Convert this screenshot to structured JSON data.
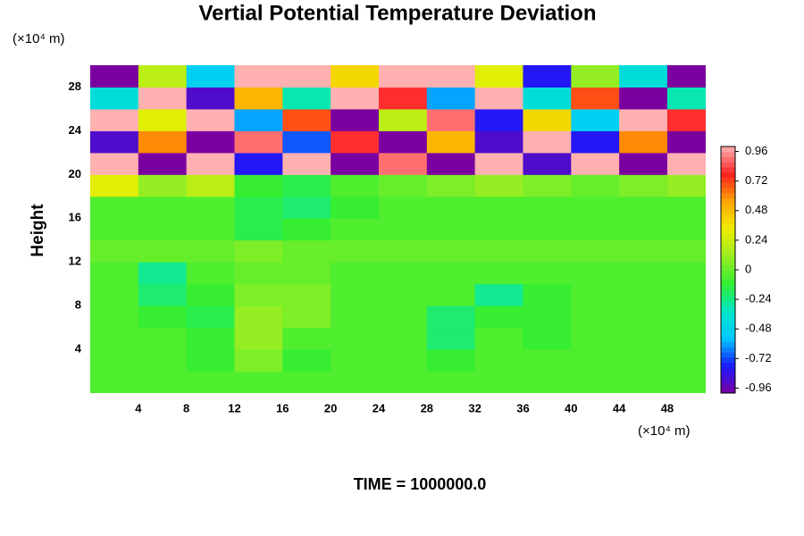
{
  "chart_data": {
    "type": "heatmap",
    "title": "Vertial Potential Temperature Deviation",
    "ylabel": "Height",
    "yunit": "(×10⁴ m)",
    "xunit": "(×10⁴ m)",
    "footer": "TIME = 1000000.0",
    "x": [
      2,
      6,
      10,
      14,
      18,
      22,
      26,
      30,
      34,
      38,
      42,
      46,
      50
    ],
    "y": [
      1,
      3,
      5,
      7,
      9,
      11,
      13,
      15,
      17,
      19,
      21,
      23,
      25,
      27,
      29
    ],
    "z": [
      [
        -0.05,
        -0.05,
        -0.05,
        -0.05,
        -0.05,
        -0.05,
        -0.05,
        -0.05,
        -0.05,
        -0.05,
        -0.05,
        -0.05,
        -0.05
      ],
      [
        -0.05,
        -0.05,
        -0.1,
        0.05,
        -0.1,
        -0.05,
        -0.05,
        -0.1,
        -0.05,
        -0.05,
        -0.05,
        -0.05,
        -0.05
      ],
      [
        -0.05,
        -0.05,
        -0.1,
        0.1,
        -0.05,
        -0.05,
        -0.05,
        -0.2,
        -0.05,
        -0.1,
        -0.05,
        -0.05,
        -0.05
      ],
      [
        -0.05,
        -0.1,
        -0.15,
        0.1,
        0.05,
        -0.05,
        -0.05,
        -0.2,
        -0.1,
        -0.1,
        -0.05,
        -0.05,
        -0.05
      ],
      [
        -0.05,
        -0.2,
        -0.1,
        0.05,
        0.05,
        -0.05,
        -0.05,
        -0.05,
        -0.25,
        -0.1,
        -0.05,
        -0.05,
        -0.05
      ],
      [
        -0.05,
        -0.25,
        -0.05,
        0,
        0,
        -0.05,
        -0.05,
        -0.05,
        -0.05,
        -0.05,
        -0.05,
        -0.05,
        -0.05
      ],
      [
        0,
        0,
        0,
        0.05,
        0,
        0,
        0,
        0,
        0,
        0,
        0,
        0,
        0
      ],
      [
        -0.05,
        -0.05,
        -0.05,
        -0.15,
        -0.1,
        -0.05,
        -0.05,
        -0.05,
        -0.05,
        -0.05,
        -0.05,
        -0.05,
        -0.05
      ],
      [
        -0.05,
        -0.05,
        -0.05,
        -0.15,
        -0.2,
        -0.1,
        -0.05,
        -0.05,
        -0.05,
        -0.05,
        -0.05,
        -0.05,
        -0.05
      ],
      [
        0.3,
        0.1,
        0.2,
        -0.1,
        -0.15,
        -0.05,
        0,
        0.05,
        0.1,
        0.05,
        0,
        0.05,
        0.1
      ],
      [
        1,
        -1,
        1,
        -0.8,
        1,
        -1,
        0.9,
        -1,
        1,
        -0.9,
        1,
        -1,
        1
      ],
      [
        -0.9,
        0.6,
        -1,
        0.9,
        -0.7,
        0.8,
        -1,
        0.5,
        -0.9,
        1,
        -0.8,
        0.6,
        -1
      ],
      [
        1,
        0.3,
        1,
        -0.6,
        0.7,
        -1,
        0.2,
        0.9,
        -0.8,
        0.4,
        -0.5,
        1,
        0.8
      ],
      [
        -0.4,
        1,
        -0.9,
        0.5,
        -0.3,
        1,
        0.8,
        -0.6,
        1,
        -0.4,
        0.7,
        -1,
        -0.3
      ],
      [
        -1,
        0.2,
        -0.5,
        1,
        1,
        0.4,
        1,
        1,
        0.3,
        -0.8,
        0.1,
        -0.4,
        -1
      ]
    ],
    "xlim": [
      0,
      51.2
    ],
    "ylim": [
      0,
      30
    ],
    "xticks": [
      4,
      8,
      12,
      16,
      20,
      24,
      28,
      32,
      36,
      40,
      44,
      48
    ],
    "yticks": [
      4,
      8,
      12,
      16,
      20,
      24,
      28
    ],
    "clim": [
      -1,
      1
    ],
    "cticks": [
      0.96,
      0.72,
      0.48,
      0.24,
      0,
      -0.24,
      -0.48,
      -0.72,
      -0.96
    ],
    "colormap": [
      "#7b00a0",
      "#1a1aff",
      "#00c8ff",
      "#00e6c8",
      "#33ee33",
      "#99ee22",
      "#eeee00",
      "#ffa500",
      "#ff2020",
      "#ffb0b0"
    ]
  }
}
